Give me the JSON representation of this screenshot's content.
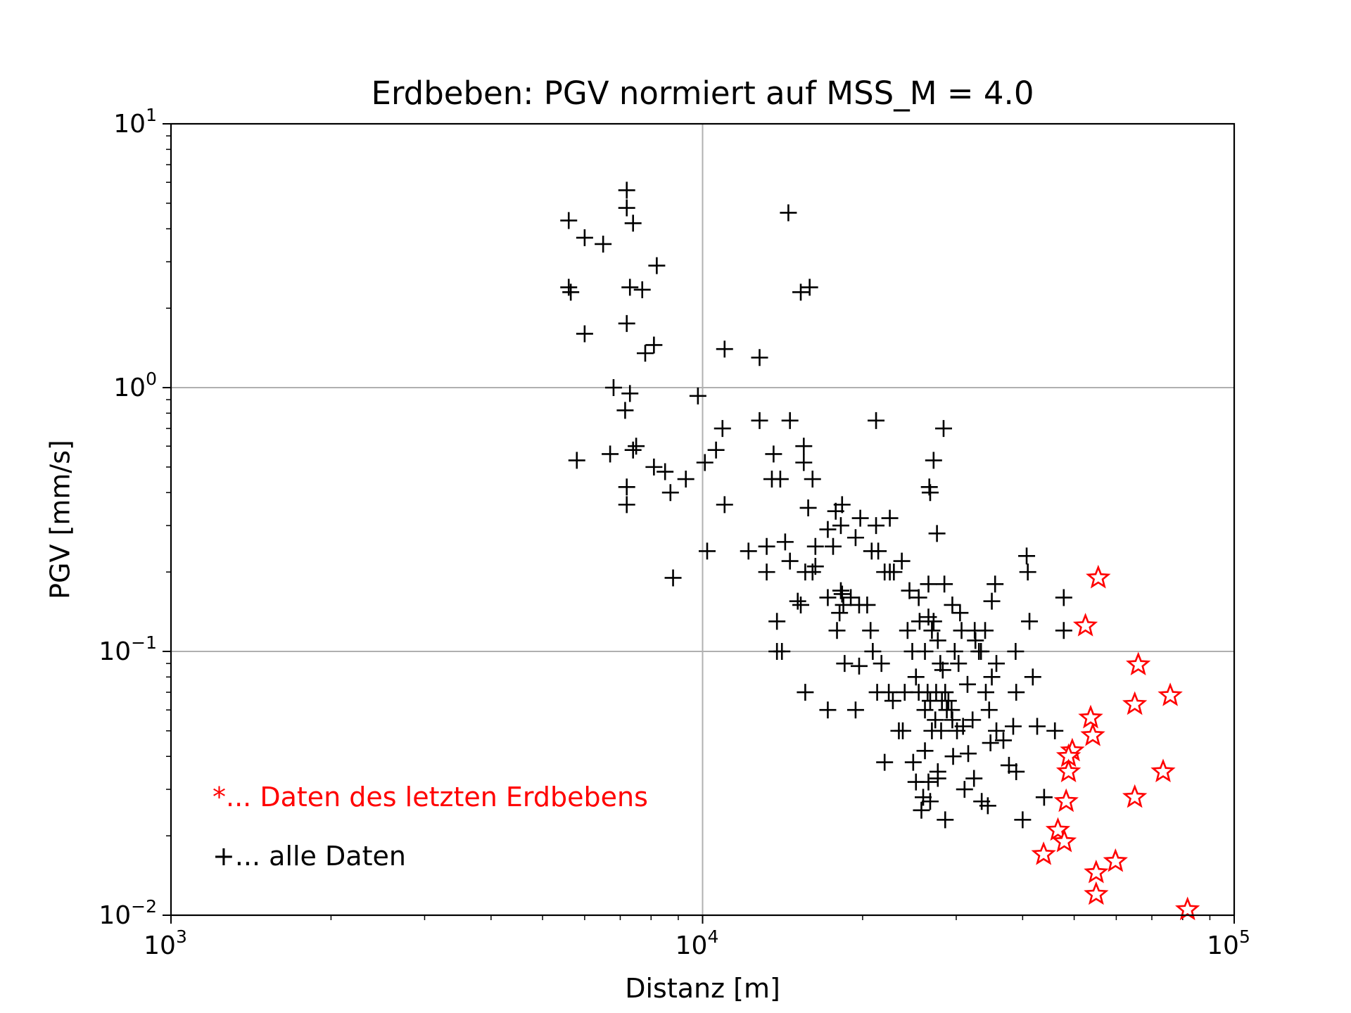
{
  "chart_data": {
    "type": "scatter",
    "title": "Erdbeben: PGV normiert auf MSS_M = 4.0",
    "xlabel": "Distanz [m]",
    "ylabel": "PGV [mm/s]",
    "x_scale": "log",
    "y_scale": "log",
    "xlim": [
      1000,
      100000
    ],
    "ylim": [
      0.01,
      10
    ],
    "x_ticks": [
      {
        "value": 1000,
        "base": "10",
        "exp": "3"
      },
      {
        "value": 10000,
        "base": "10",
        "exp": "4"
      },
      {
        "value": 100000,
        "base": "10",
        "exp": "5"
      }
    ],
    "y_ticks": [
      {
        "value": 10,
        "base": "10",
        "exp": "1"
      },
      {
        "value": 1,
        "base": "10",
        "exp": "0"
      },
      {
        "value": 0.1,
        "base": "10",
        "exp": "−1"
      },
      {
        "value": 0.01,
        "base": "10",
        "exp": "−2"
      }
    ],
    "grid": "major",
    "annotations": [
      {
        "text": "*... Daten des letzten Erdbebens",
        "color": "#ff0000"
      },
      {
        "text": "+... alle Daten",
        "color": "#000000"
      }
    ],
    "series": [
      {
        "marker": "plus",
        "color": "#000000",
        "points": [
          [
            5600,
            4.3
          ],
          [
            6000,
            3.7
          ],
          [
            6500,
            3.5
          ],
          [
            7200,
            5.6
          ],
          [
            7200,
            4.8
          ],
          [
            7400,
            4.2
          ],
          [
            8200,
            2.9
          ],
          [
            5600,
            2.4
          ],
          [
            5650,
            2.3
          ],
          [
            7300,
            2.4
          ],
          [
            7700,
            2.35
          ],
          [
            6000,
            1.6
          ],
          [
            7200,
            1.75
          ],
          [
            7800,
            1.35
          ],
          [
            8100,
            1.45
          ],
          [
            6800,
            1.0
          ],
          [
            7300,
            0.95
          ],
          [
            7150,
            0.82
          ],
          [
            7500,
            0.6
          ],
          [
            7400,
            0.58
          ],
          [
            5800,
            0.53
          ],
          [
            6700,
            0.56
          ],
          [
            8100,
            0.5
          ],
          [
            8500,
            0.48
          ],
          [
            8700,
            0.4
          ],
          [
            9300,
            0.45
          ],
          [
            10100,
            0.52
          ],
          [
            10600,
            0.58
          ],
          [
            10900,
            0.7
          ],
          [
            7200,
            0.42
          ],
          [
            7200,
            0.36
          ],
          [
            9800,
            0.93
          ],
          [
            11000,
            1.4
          ],
          [
            12800,
            1.3
          ],
          [
            14500,
            4.6
          ],
          [
            15300,
            2.3
          ],
          [
            15900,
            2.4
          ],
          [
            11000,
            0.36
          ],
          [
            10200,
            0.24
          ],
          [
            8800,
            0.19
          ],
          [
            12800,
            0.75
          ],
          [
            14600,
            0.75
          ],
          [
            13600,
            0.56
          ],
          [
            15500,
            0.6
          ],
          [
            15500,
            0.52
          ],
          [
            16100,
            0.45
          ],
          [
            13500,
            0.45
          ],
          [
            14000,
            0.45
          ],
          [
            15800,
            0.35
          ],
          [
            17800,
            0.34
          ],
          [
            18300,
            0.36
          ],
          [
            17200,
            0.29
          ],
          [
            18200,
            0.3
          ],
          [
            19800,
            0.32
          ],
          [
            21200,
            0.3
          ],
          [
            22500,
            0.32
          ],
          [
            17600,
            0.25
          ],
          [
            19400,
            0.27
          ],
          [
            20800,
            0.24
          ],
          [
            21400,
            0.24
          ],
          [
            12200,
            0.24
          ],
          [
            13200,
            0.25
          ],
          [
            14300,
            0.26
          ],
          [
            16300,
            0.25
          ],
          [
            13200,
            0.2
          ],
          [
            14600,
            0.22
          ],
          [
            15600,
            0.2
          ],
          [
            16300,
            0.21
          ],
          [
            16100,
            0.2
          ],
          [
            15100,
            0.155
          ],
          [
            15300,
            0.15
          ],
          [
            17200,
            0.16
          ],
          [
            18200,
            0.17
          ],
          [
            18300,
            0.165
          ],
          [
            19000,
            0.16
          ],
          [
            19700,
            0.15
          ],
          [
            18400,
            0.15
          ],
          [
            18100,
            0.14
          ],
          [
            17900,
            0.12
          ],
          [
            20400,
            0.15
          ],
          [
            22000,
            0.2
          ],
          [
            22500,
            0.2
          ],
          [
            22900,
            0.2
          ],
          [
            23700,
            0.22
          ],
          [
            21200,
            0.75
          ],
          [
            28400,
            0.7
          ],
          [
            27200,
            0.53
          ],
          [
            26700,
            0.42
          ],
          [
            26800,
            0.4
          ],
          [
            27600,
            0.28
          ],
          [
            24500,
            0.17
          ],
          [
            25500,
            0.16
          ],
          [
            26600,
            0.18
          ],
          [
            28500,
            0.18
          ],
          [
            29500,
            0.15
          ],
          [
            30500,
            0.14
          ],
          [
            32500,
            0.12
          ],
          [
            34000,
            0.12
          ],
          [
            35000,
            0.155
          ],
          [
            35500,
            0.18
          ],
          [
            40700,
            0.23
          ],
          [
            40900,
            0.2
          ],
          [
            41200,
            0.13
          ],
          [
            38800,
            0.1
          ],
          [
            41800,
            0.08
          ],
          [
            38900,
            0.07
          ],
          [
            35700,
            0.09
          ],
          [
            35000,
            0.08
          ],
          [
            35700,
            0.05
          ],
          [
            38400,
            0.052
          ],
          [
            42600,
            0.052
          ],
          [
            36800,
            0.046
          ],
          [
            37700,
            0.037
          ],
          [
            38900,
            0.035
          ],
          [
            43900,
            0.028
          ],
          [
            40000,
            0.023
          ],
          [
            47800,
            0.16
          ],
          [
            47800,
            0.12
          ],
          [
            46000,
            0.05
          ],
          [
            13800,
            0.13
          ],
          [
            13800,
            0.1
          ],
          [
            14100,
            0.1
          ],
          [
            15600,
            0.07
          ],
          [
            17200,
            0.06
          ],
          [
            18500,
            0.09
          ],
          [
            19400,
            0.06
          ],
          [
            19700,
            0.088
          ],
          [
            20700,
            0.12
          ],
          [
            20900,
            0.1
          ],
          [
            21300,
            0.07
          ],
          [
            21700,
            0.09
          ],
          [
            22400,
            0.07
          ],
          [
            22800,
            0.065
          ],
          [
            23400,
            0.05
          ],
          [
            23800,
            0.05
          ],
          [
            24000,
            0.07
          ],
          [
            24300,
            0.12
          ],
          [
            24800,
            0.1
          ],
          [
            25200,
            0.08
          ],
          [
            25600,
            0.13
          ],
          [
            26200,
            0.1
          ],
          [
            26600,
            0.135
          ],
          [
            27000,
            0.12
          ],
          [
            27200,
            0.13
          ],
          [
            27700,
            0.11
          ],
          [
            28000,
            0.09
          ],
          [
            28300,
            0.085
          ],
          [
            28600,
            0.07
          ],
          [
            29000,
            0.065
          ],
          [
            29400,
            0.06
          ],
          [
            29800,
            0.1
          ],
          [
            30300,
            0.09
          ],
          [
            30700,
            0.12
          ],
          [
            31500,
            0.075
          ],
          [
            32200,
            0.055
          ],
          [
            32600,
            0.11
          ],
          [
            33100,
            0.1
          ],
          [
            33400,
            0.1
          ],
          [
            34100,
            0.07
          ],
          [
            34600,
            0.06
          ],
          [
            34800,
            0.045
          ],
          [
            26500,
            0.07
          ],
          [
            26800,
            0.065
          ],
          [
            27500,
            0.07
          ],
          [
            28200,
            0.065
          ],
          [
            28800,
            0.06
          ],
          [
            27400,
            0.055
          ],
          [
            26200,
            0.06
          ],
          [
            25500,
            0.07
          ],
          [
            30100,
            0.05
          ],
          [
            29500,
            0.055
          ],
          [
            28100,
            0.05
          ],
          [
            27000,
            0.05
          ],
          [
            22000,
            0.038
          ],
          [
            24900,
            0.038
          ],
          [
            26200,
            0.042
          ],
          [
            27700,
            0.035
          ],
          [
            29600,
            0.04
          ],
          [
            25200,
            0.032
          ],
          [
            26600,
            0.032
          ],
          [
            27700,
            0.033
          ],
          [
            31100,
            0.03
          ],
          [
            32400,
            0.033
          ],
          [
            26000,
            0.028
          ],
          [
            26800,
            0.027
          ],
          [
            25800,
            0.025
          ],
          [
            28600,
            0.023
          ],
          [
            33500,
            0.027
          ],
          [
            34400,
            0.026
          ],
          [
            31600,
            0.041
          ],
          [
            30900,
            0.052
          ]
        ]
      },
      {
        "marker": "star",
        "color": "#ff0000",
        "points": [
          [
            55500,
            0.19
          ],
          [
            52500,
            0.125
          ],
          [
            66000,
            0.089
          ],
          [
            75800,
            0.068
          ],
          [
            65000,
            0.063
          ],
          [
            53700,
            0.056
          ],
          [
            54200,
            0.048
          ],
          [
            49600,
            0.042
          ],
          [
            48800,
            0.04
          ],
          [
            48800,
            0.035
          ],
          [
            73500,
            0.035
          ],
          [
            48300,
            0.027
          ],
          [
            65000,
            0.028
          ],
          [
            46600,
            0.021
          ],
          [
            47900,
            0.019
          ],
          [
            43800,
            0.017
          ],
          [
            59800,
            0.016
          ],
          [
            55000,
            0.0145
          ],
          [
            55000,
            0.012
          ],
          [
            81700,
            0.0105
          ]
        ]
      }
    ]
  }
}
